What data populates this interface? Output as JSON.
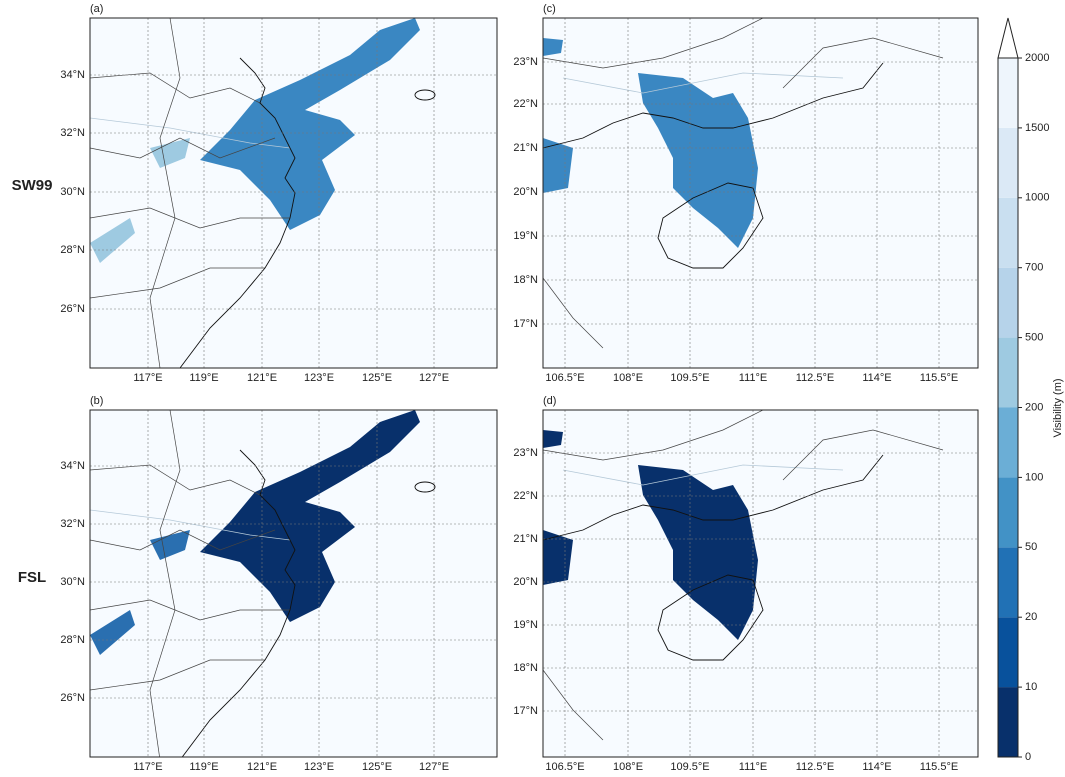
{
  "row_labels": [
    "SW99",
    "FSL"
  ],
  "panels": [
    {
      "label": "(a)",
      "lat_ticks": [
        "34°N",
        "32°N",
        "30°N",
        "28°N",
        "26°N"
      ],
      "lon_ticks": [
        "117°E",
        "119°E",
        "121°E",
        "123°E",
        "125°E",
        "127°E"
      ]
    },
    {
      "label": "(b)",
      "lat_ticks": [
        "34°N",
        "32°N",
        "30°N",
        "28°N",
        "26°N"
      ],
      "lon_ticks": [
        "117°E",
        "119°E",
        "121°E",
        "123°E",
        "125°E",
        "127°E"
      ]
    },
    {
      "label": "(c)",
      "lat_ticks": [
        "23°N",
        "22°N",
        "21°N",
        "20°N",
        "19°N",
        "18°N",
        "17°N"
      ],
      "lon_ticks": [
        "106.5°E",
        "108°E",
        "109.5°E",
        "111°E",
        "112.5°E",
        "114°E",
        "115.5°E"
      ]
    },
    {
      "label": "(d)",
      "lat_ticks": [
        "23°N",
        "22°N",
        "21°N",
        "20°N",
        "19°N",
        "18°N",
        "17°N"
      ],
      "lon_ticks": [
        "106.5°E",
        "108°E",
        "109.5°E",
        "111°E",
        "112.5°E",
        "114°E",
        "115.5°E"
      ]
    }
  ],
  "colorbar": {
    "label": "Visibility (m)",
    "levels": [
      0,
      10,
      20,
      50,
      100,
      200,
      500,
      700,
      1000,
      1500,
      2000
    ],
    "colors": [
      "#08306b",
      "#08519c",
      "#2171b5",
      "#4292c6",
      "#6baed6",
      "#9ecae1",
      "#b6d3ea",
      "#c9dff0",
      "#dbe9f6",
      "#eef5fc"
    ],
    "extend_color": "#ffffff"
  }
}
